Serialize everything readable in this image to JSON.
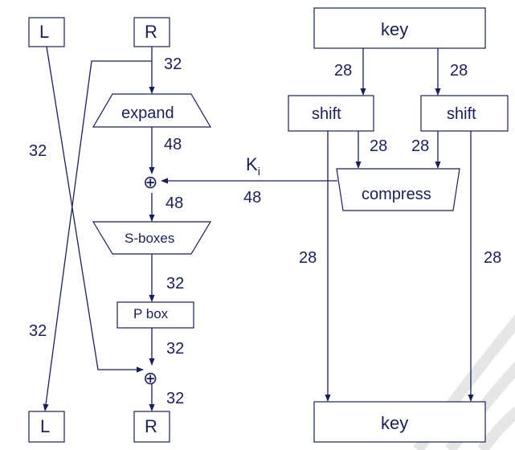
{
  "colors": {
    "line": "#1a1f5c",
    "text": "#1a1f5c",
    "background": "#ffffff",
    "watermark": "#e8e8e8"
  },
  "nodes": {
    "l_top": "L",
    "r_top": "R",
    "l_bottom": "L",
    "r_bottom": "R",
    "key_top": "key",
    "key_bottom": "key",
    "expand": "expand",
    "sboxes": "S-boxes",
    "pbox": "P box",
    "shift_left": "shift",
    "shift_right": "shift",
    "compress": "compress",
    "xor_symbol": "⊕"
  },
  "subkey": {
    "base": "K",
    "sub": "i"
  },
  "bit_widths": {
    "r_to_expand": "32",
    "expand_to_xor": "48",
    "xor_to_sboxes": "48",
    "subkey_width": "48",
    "sboxes_to_pbox": "32",
    "pbox_to_xor": "32",
    "xor_to_r": "32",
    "l_path_upper": "32",
    "l_path_lower": "32",
    "key_to_shift_left": "28",
    "key_to_shift_right": "28",
    "shift_left_to_compress": "28",
    "shift_right_to_compress": "28",
    "shift_left_to_key": "28",
    "shift_right_to_key": "28"
  }
}
